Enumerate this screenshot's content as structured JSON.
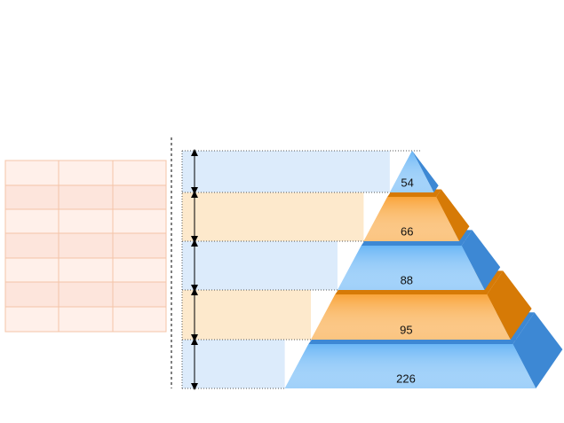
{
  "chart_data": {
    "type": "pyramid",
    "values": [
      54,
      66,
      88,
      95,
      226
    ],
    "colors": [
      "#6ab6f6",
      "#f9a43a",
      "#6ab6f6",
      "#f9a43a",
      "#6ab6f6"
    ],
    "side_colors": [
      "#3d88d4",
      "#d67a06",
      "#3d88d4",
      "#d67a06",
      "#3d88d4"
    ],
    "band_colors": [
      "#dcebfb",
      "#fde9cc",
      "#dcebfb",
      "#fde9cc",
      "#dcebfb"
    ]
  }
}
